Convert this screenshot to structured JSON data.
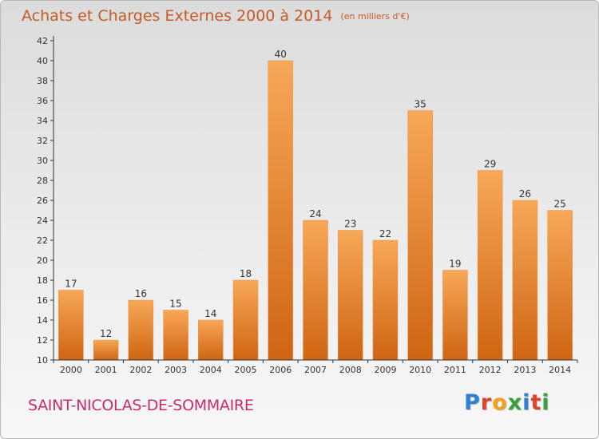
{
  "title": "Achats et Charges Externes 2000 à 2014",
  "unit": "(en milliers d'€)",
  "commune": "SAINT-NICOLAS-DE-SOMMAIRE",
  "logo": {
    "text": "Proxiti",
    "colors": [
      "#2f7fd2",
      "#e0432b",
      "#f0a21f",
      "#3a9e3c",
      "#2f7fd2",
      "#e0432b",
      "#3a9e3c"
    ]
  },
  "colors": {
    "title": "#c65b2a",
    "commune": "#c92b6e",
    "bar_top": "#f7a858",
    "bar_bottom": "#cf6512",
    "axis": "#333333"
  },
  "chart_data": {
    "type": "bar",
    "categories": [
      "2000",
      "2001",
      "2002",
      "2003",
      "2004",
      "2005",
      "2006",
      "2007",
      "2008",
      "2009",
      "2010",
      "2011",
      "2012",
      "2013",
      "2014"
    ],
    "values": [
      17,
      12,
      16,
      15,
      14,
      18,
      40,
      24,
      23,
      22,
      35,
      19,
      29,
      26,
      25
    ],
    "ylim": [
      10,
      42
    ],
    "yticks": [
      10,
      12,
      14,
      16,
      18,
      20,
      22,
      24,
      26,
      28,
      30,
      32,
      34,
      36,
      38,
      40,
      42
    ],
    "grid": false,
    "data_labels": true
  }
}
